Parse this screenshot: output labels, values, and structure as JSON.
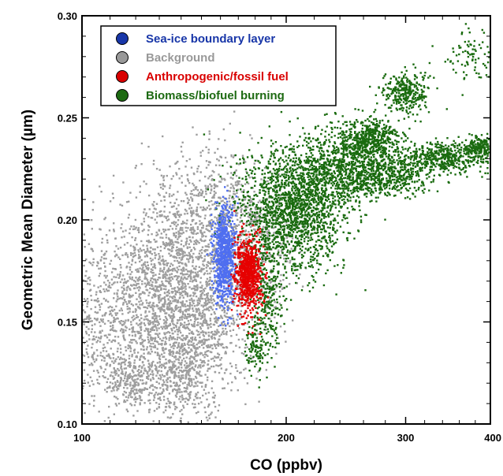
{
  "chart_data": {
    "type": "scatter",
    "xlabel": "CO (ppbv)",
    "ylabel": "Geometric Mean Diameter (µm)",
    "xscale": "log",
    "xlim": [
      100,
      400
    ],
    "ylim": [
      0.1,
      0.3
    ],
    "xticks": [
      {
        "value": 100,
        "label": "100"
      },
      {
        "value": 200,
        "label": "200"
      },
      {
        "value": 300,
        "label": "300"
      },
      {
        "value": 400,
        "label": "400"
      }
    ],
    "yticks": [
      {
        "value": 0.1,
        "label": "0.10"
      },
      {
        "value": 0.15,
        "label": "0.15"
      },
      {
        "value": 0.2,
        "label": "0.20"
      },
      {
        "value": 0.25,
        "label": "0.25"
      },
      {
        "value": 0.3,
        "label": "0.30"
      }
    ],
    "grid": false,
    "legend_position": "top-left",
    "series": [
      {
        "name": "Background",
        "color": "#9e9e9e",
        "clusters": [
          {
            "x": 135,
            "y": 0.16,
            "sx": 22,
            "sy": 0.022,
            "n": 2600
          },
          {
            "x": 118,
            "y": 0.122,
            "sx": 6,
            "sy": 0.007,
            "n": 260
          },
          {
            "x": 150,
            "y": 0.205,
            "sx": 14,
            "sy": 0.016,
            "n": 500
          },
          {
            "x": 178,
            "y": 0.19,
            "sx": 14,
            "sy": 0.015,
            "n": 450
          },
          {
            "x": 140,
            "y": 0.125,
            "sx": 10,
            "sy": 0.012,
            "n": 450
          },
          {
            "x": 104,
            "y": 0.14,
            "sx": 5,
            "sy": 0.012,
            "n": 120
          }
        ]
      },
      {
        "name": "Biomass/biofuel burning",
        "color": "#1a6b0f",
        "clusters": [
          {
            "x": 205,
            "y": 0.205,
            "sx": 18,
            "sy": 0.015,
            "n": 1700
          },
          {
            "x": 240,
            "y": 0.225,
            "sx": 18,
            "sy": 0.009,
            "n": 700
          },
          {
            "x": 280,
            "y": 0.222,
            "sx": 20,
            "sy": 0.005,
            "n": 500
          },
          {
            "x": 340,
            "y": 0.23,
            "sx": 25,
            "sy": 0.004,
            "n": 450
          },
          {
            "x": 385,
            "y": 0.235,
            "sx": 10,
            "sy": 0.003,
            "n": 200
          },
          {
            "x": 265,
            "y": 0.24,
            "sx": 15,
            "sy": 0.005,
            "n": 500
          },
          {
            "x": 300,
            "y": 0.262,
            "sx": 12,
            "sy": 0.005,
            "n": 300
          },
          {
            "x": 375,
            "y": 0.28,
            "sx": 20,
            "sy": 0.007,
            "n": 100
          },
          {
            "x": 188,
            "y": 0.162,
            "sx": 5,
            "sy": 0.015,
            "n": 260
          },
          {
            "x": 180,
            "y": 0.138,
            "sx": 4,
            "sy": 0.007,
            "n": 100
          }
        ]
      },
      {
        "name": "Sea-ice boundary layer",
        "color": "#4f6ef0",
        "clusters": [
          {
            "x": 162,
            "y": 0.182,
            "sx": 3,
            "sy": 0.012,
            "n": 750
          }
        ]
      },
      {
        "name": "Anthropogenic/fossil fuel",
        "color": "#e60000",
        "clusters": [
          {
            "x": 176,
            "y": 0.173,
            "sx": 4,
            "sy": 0.009,
            "n": 800
          }
        ]
      }
    ],
    "legend": [
      {
        "label": "Sea-ice boundary layer",
        "color": "#1836a8"
      },
      {
        "label": "Background",
        "color": "#999999"
      },
      {
        "label": "Anthropogenic/fossil fuel",
        "color": "#d90000"
      },
      {
        "label": "Biomass/biofuel burning",
        "color": "#1d6a12"
      }
    ]
  }
}
